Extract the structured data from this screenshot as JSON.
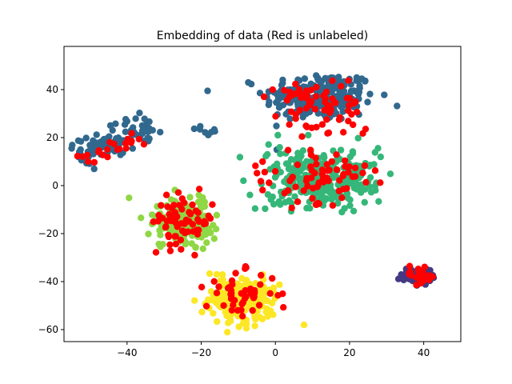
{
  "chart_data": {
    "type": "scatter",
    "title": "Embedding of data (Red is unlabeled)",
    "xlabel": "",
    "ylabel": "",
    "xlim": [
      -57,
      50
    ],
    "ylim": [
      -65,
      58
    ],
    "xticks": [
      -40,
      -20,
      0,
      20,
      40
    ],
    "xtick_labels": [
      "−40",
      "−20",
      "0",
      "20",
      "40"
    ],
    "yticks": [
      -60,
      -40,
      -20,
      0,
      20,
      40
    ],
    "ytick_labels": [
      "−60",
      "−40",
      "−20",
      "0",
      "20",
      "40"
    ],
    "grid": false,
    "legend": "none",
    "clusters": [
      {
        "label": "class-0",
        "color": "#31688e",
        "shape": "ellipse",
        "center": [
          12,
          37
        ],
        "spread": [
          10,
          7
        ],
        "count": 220
      },
      {
        "label": "class-0",
        "color": "#31688e",
        "shape": "band",
        "from": [
          -53,
          11
        ],
        "to": [
          -33,
          26
        ],
        "width": 2.4,
        "count": 110
      },
      {
        "label": "class-0",
        "color": "#31688e",
        "shape": "band",
        "from": [
          -22,
          24
        ],
        "to": [
          -16,
          22
        ],
        "width": 1,
        "count": 8
      },
      {
        "label": "class-1",
        "color": "#35b779",
        "shape": "ellipse",
        "center": [
          12,
          3
        ],
        "spread": [
          10,
          8
        ],
        "count": 300
      },
      {
        "label": "class-2",
        "color": "#8fd744",
        "shape": "ellipse",
        "center": [
          -25,
          -15
        ],
        "spread": [
          5,
          6
        ],
        "count": 200
      },
      {
        "label": "class-3",
        "color": "#fde725",
        "shape": "ellipse",
        "center": [
          -9,
          -47
        ],
        "spread": [
          6.5,
          6
        ],
        "count": 220
      },
      {
        "label": "class-4",
        "color": "#443983",
        "shape": "ellipse",
        "center": [
          38,
          -37
        ],
        "spread": [
          3,
          2.3
        ],
        "count": 80
      },
      {
        "label": "unlabeled",
        "color": "#ff0000",
        "shape": "ellipse",
        "center": [
          13,
          34
        ],
        "spread": [
          9,
          8
        ],
        "count": 70
      },
      {
        "label": "unlabeled",
        "color": "#ff0000",
        "shape": "ellipse",
        "center": [
          12,
          3
        ],
        "spread": [
          10,
          8
        ],
        "count": 75
      },
      {
        "label": "unlabeled",
        "color": "#ff0000",
        "shape": "band",
        "from": [
          -52,
          10
        ],
        "to": [
          -36,
          20
        ],
        "width": 2.5,
        "count": 22
      },
      {
        "label": "unlabeled",
        "color": "#ff0000",
        "shape": "ellipse",
        "center": [
          -25,
          -15
        ],
        "spread": [
          5.5,
          7
        ],
        "count": 65
      },
      {
        "label": "unlabeled",
        "color": "#ff0000",
        "shape": "ellipse",
        "center": [
          -9,
          -45
        ],
        "spread": [
          6.5,
          6
        ],
        "count": 50
      },
      {
        "label": "unlabeled",
        "color": "#ff0000",
        "shape": "ellipse",
        "center": [
          39,
          -37
        ],
        "spread": [
          3,
          2.5
        ],
        "count": 22
      }
    ]
  }
}
